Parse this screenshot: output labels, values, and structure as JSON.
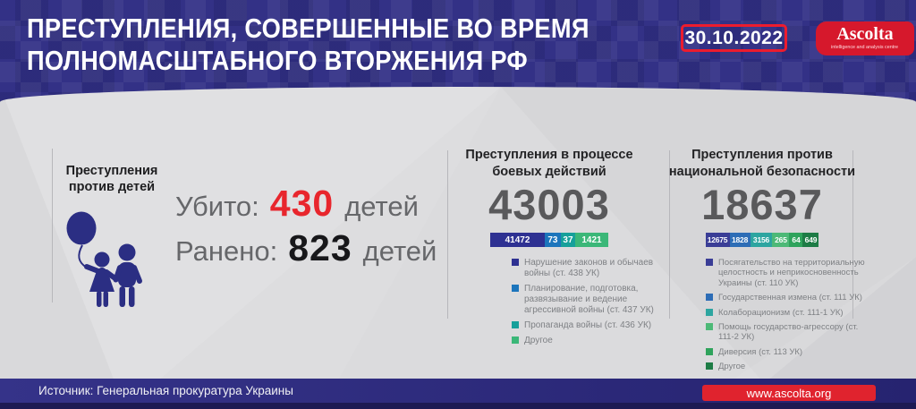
{
  "header": {
    "title_line1": "ПРЕСТУПЛЕНИЯ, СОВЕРШЕННЫЕ ВО ВРЕМЯ",
    "title_line2": "ПОЛНОМАСШТАБНОГО ВТОРЖЕНИЯ РФ",
    "date": "30.10.2022",
    "logo_name": "Ascolta",
    "logo_tagline": "intelligence and analysis centre"
  },
  "colors": {
    "header_blue": "#333186",
    "accent_red": "#e0232e",
    "killed_red": "#e8262d",
    "number_gray": "#59595b",
    "icon_blue": "#2b2e83"
  },
  "children_section": {
    "title": "Преступления против детей",
    "icon": "children-with-balloon-icon",
    "killed": {
      "label": "Убито:",
      "value": "430",
      "suffix": "детей"
    },
    "wounded": {
      "label": "Ранено:",
      "value": "823",
      "suffix": "детей"
    }
  },
  "chart_data": [
    {
      "type": "bar",
      "subtype": "stacked-horizontal",
      "title": "Преступления в процессе боевых действий",
      "total": 43003,
      "legend_position": "bottom-left",
      "segments": [
        {
          "label": "Нарушение законов и обычаев войны (ст. 438 УК)",
          "value": 41472,
          "color": "#2e3192",
          "bar_pct": 46.2
        },
        {
          "label": "Планирование, подготовка, развязывание и ведение агрессивной войны (ст. 437 УК)",
          "value": 73,
          "color": "#1c75bc",
          "bar_pct": 13.6
        },
        {
          "label": "Пропаганда войны (ст. 436 УК)",
          "value": 37,
          "color": "#16a09a",
          "bar_pct": 12.2
        },
        {
          "label": "Другое",
          "value": 1421,
          "color": "#3bb778",
          "bar_pct": 28.0
        }
      ]
    },
    {
      "type": "bar",
      "subtype": "stacked-horizontal",
      "title": "Преступления против национальной безопасности",
      "total": 18637,
      "legend_position": "bottom-left",
      "segments": [
        {
          "label": "Посягательство на территориальную целостность и неприкосновенность Украины (ст. 110 УК)",
          "value": 12675,
          "color": "#3a3d96",
          "bar_pct": 21.3
        },
        {
          "label": "Государственная измена (ст. 111 УК)",
          "value": 1828,
          "color": "#2d6db6",
          "bar_pct": 18.1
        },
        {
          "label": "Колаборационизм (ст. 111-1 УК)",
          "value": 3156,
          "color": "#2da5a0",
          "bar_pct": 19.6
        },
        {
          "label": "Помощь государство-агрессору (ст. 111-2 УК)",
          "value": 265,
          "color": "#4db977",
          "bar_pct": 15.0
        },
        {
          "label": "Диверсия (ст. 113 УК)",
          "value": 64,
          "color": "#2fa35c",
          "bar_pct": 11.8
        },
        {
          "label": "Другое",
          "value": 649,
          "color": "#1e7c46",
          "bar_pct": 14.2
        }
      ]
    }
  ],
  "footer": {
    "source": "Источник: Генеральная прокуратура Украины",
    "url": "www.ascolta.org"
  }
}
